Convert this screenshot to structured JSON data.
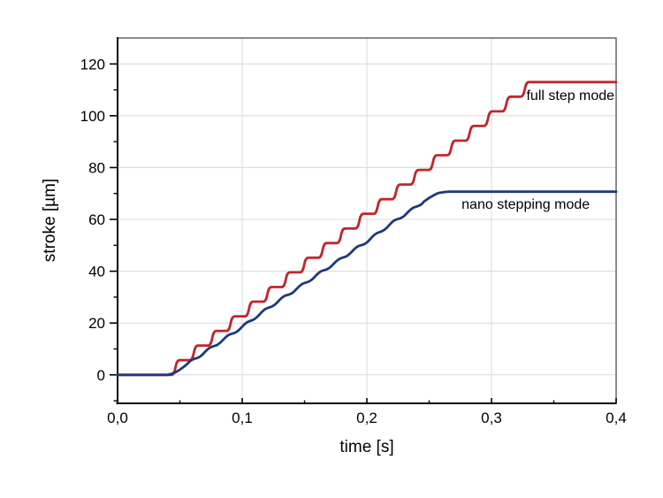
{
  "page": {
    "background": "#ffffff"
  },
  "chart_data": {
    "type": "line",
    "title": "",
    "xlabel": "time [s]",
    "ylabel": "stroke [µm]",
    "xlim": [
      0,
      0.4
    ],
    "ylim": [
      -11,
      130
    ],
    "x_major_ticks": [
      0,
      0.1,
      0.2,
      0.3,
      0.4
    ],
    "x_major_tick_labels": [
      "0,0",
      "0,1",
      "0,2",
      "0,3",
      "0,4"
    ],
    "x_minor_ticks": [
      0.05,
      0.15,
      0.25,
      0.35
    ],
    "y_major_ticks": [
      0,
      20,
      40,
      60,
      80,
      100,
      120
    ],
    "y_major_tick_labels": [
      "0",
      "20",
      "40",
      "60",
      "80",
      "100",
      "120"
    ],
    "y_minor_ticks": [
      -10,
      10,
      30,
      50,
      70,
      90,
      110
    ],
    "grid": {
      "major": true,
      "minor": false,
      "color": "#d9d9d9"
    },
    "axis_color": "#000000",
    "box_color": "#4d4d4d",
    "legend_position": "inline-labels",
    "series": [
      {
        "name": "full step mode",
        "color": "#c1262c",
        "shape": "stepped_ramp",
        "flat_start_value": 0,
        "ramp_start_t": 0.035,
        "steps": 20,
        "step_height": 5.65,
        "step_period": 0.01475,
        "dwell_fraction": 0.55,
        "plateau_value": 113,
        "plateau_start_t": 0.33,
        "end_t": 0.4,
        "key_points": [
          [
            0,
            0
          ],
          [
            0.035,
            0
          ],
          [
            0.05,
            8
          ],
          [
            0.1,
            22
          ],
          [
            0.15,
            43
          ],
          [
            0.2,
            60
          ],
          [
            0.25,
            83
          ],
          [
            0.3,
            103
          ],
          [
            0.33,
            113
          ],
          [
            0.4,
            113
          ]
        ]
      },
      {
        "name": "nano stepping mode",
        "color": "#1d3a7a",
        "shape": "smooth_ramp",
        "ripple_amplitude": 0.45,
        "ripple_period": 0.0148,
        "ripple_t_start": 0.055,
        "ripple_t_end": 0.245,
        "points": [
          [
            0,
            0
          ],
          [
            0.04,
            0
          ],
          [
            0.045,
            0.6
          ],
          [
            0.05,
            2
          ],
          [
            0.06,
            5.5
          ],
          [
            0.08,
            12
          ],
          [
            0.1,
            18.5
          ],
          [
            0.12,
            25.5
          ],
          [
            0.14,
            32
          ],
          [
            0.16,
            38.5
          ],
          [
            0.18,
            45
          ],
          [
            0.2,
            51.5
          ],
          [
            0.22,
            58.5
          ],
          [
            0.24,
            65
          ],
          [
            0.25,
            68.3
          ],
          [
            0.257,
            70.2
          ],
          [
            0.265,
            70.7
          ],
          [
            0.3,
            70.7
          ],
          [
            0.35,
            70.7
          ],
          [
            0.4,
            70.7
          ]
        ]
      }
    ],
    "annotations": [
      {
        "text": "full step mode",
        "t": 0.328,
        "value": 107.5,
        "anchor": "start"
      },
      {
        "text": "nano stepping mode",
        "t": 0.276,
        "value": 65.5,
        "anchor": "start"
      }
    ]
  }
}
